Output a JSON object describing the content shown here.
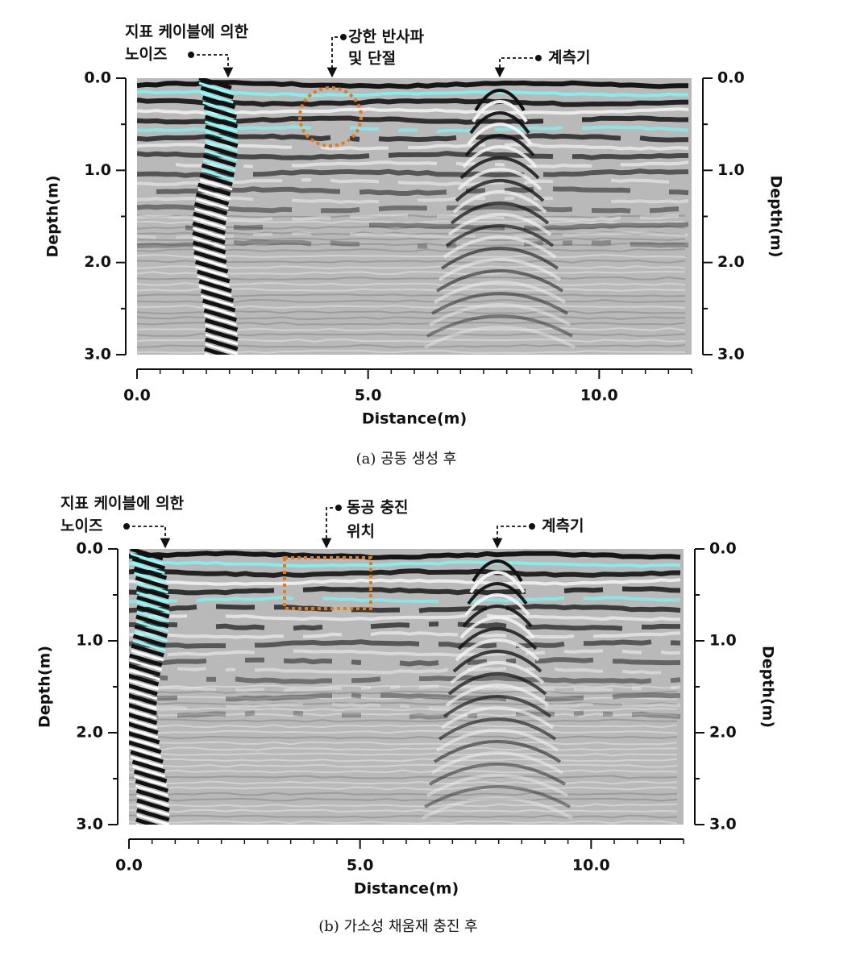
{
  "chart_data": [
    {
      "type": "radargram",
      "caption": "(a) 공동 생성 후",
      "x_label": "Distance(m)",
      "y_label": "Depth(m)",
      "y2_label": "Depth(m)",
      "xlim": [
        0,
        12
      ],
      "ylim": [
        0,
        3
      ],
      "y_inverted": true,
      "y2lim": [
        0,
        3
      ],
      "xticks": [
        {
          "value": 0,
          "label": "0.0"
        },
        {
          "value": 5,
          "label": "5.0"
        },
        {
          "value": 10,
          "label": "10.0"
        }
      ],
      "yticks": [
        {
          "value": 0,
          "label": "0.0"
        },
        {
          "value": 1,
          "label": "1.0"
        },
        {
          "value": 2,
          "label": "2.0"
        },
        {
          "value": 3,
          "label": "3.0"
        }
      ],
      "y2ticks": [
        {
          "value": 0,
          "label": "0.0"
        },
        {
          "value": 1,
          "label": "1.0"
        },
        {
          "value": 2,
          "label": "2.0"
        },
        {
          "value": 3,
          "label": "3.0"
        }
      ],
      "annotations": [
        {
          "lines": [
            "지표 케이블에 의한",
            "노이즈"
          ]
        },
        {
          "lines": [
            "강한 반사파",
            "및 단절"
          ]
        },
        {
          "lines": [
            "계측기"
          ]
        }
      ]
    },
    {
      "type": "radargram",
      "caption": "(b) 가소성 채움재 충진 후",
      "x_label": "Distance(m)",
      "y_label": "Depth(m)",
      "y2_label": "Depth(m)",
      "xlim": [
        0,
        12
      ],
      "ylim": [
        0,
        3
      ],
      "y_inverted": true,
      "y2lim": [
        0,
        3
      ],
      "xticks": [
        {
          "value": 0,
          "label": "0.0"
        },
        {
          "value": 5,
          "label": "5.0"
        },
        {
          "value": 10,
          "label": "10.0"
        }
      ],
      "yticks": [
        {
          "value": 0,
          "label": "0.0"
        },
        {
          "value": 1,
          "label": "1.0"
        },
        {
          "value": 2,
          "label": "2.0"
        },
        {
          "value": 3,
          "label": "3.0"
        }
      ],
      "y2ticks": [
        {
          "value": 0,
          "label": "0.0"
        },
        {
          "value": 1,
          "label": "1.0"
        },
        {
          "value": 2,
          "label": "2.0"
        },
        {
          "value": 3,
          "label": "3.0"
        }
      ],
      "annotations": [
        {
          "lines": [
            "지표 케이블에 의한",
            "노이즈"
          ]
        },
        {
          "lines": [
            "동공 충진",
            "위치"
          ]
        },
        {
          "lines": [
            "계측기"
          ]
        }
      ]
    }
  ]
}
